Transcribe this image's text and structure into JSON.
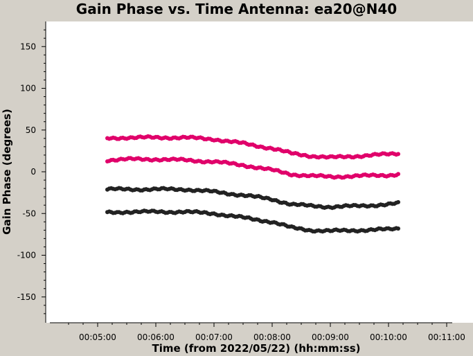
{
  "chart_data": {
    "type": "scatter",
    "title": "Gain Phase vs. Time Antenna: ea20@N40",
    "xlabel": "Time (from 2022/05/22) (hh:mm:ss)",
    "ylabel": "Gain Phase (degrees)",
    "xlim_seconds": [
      270,
      665
    ],
    "ylim": [
      -180,
      180
    ],
    "x_ticks": [
      "00:05:00",
      "00:06:00",
      "00:07:00",
      "00:08:00",
      "00:09:00",
      "00:10:00",
      "00:11:00"
    ],
    "y_ticks": [
      150,
      100,
      50,
      0,
      -50,
      -100,
      -150
    ],
    "grid": false,
    "x_time_points": [
      "00:05:10",
      "00:05:30",
      "00:06:00",
      "00:06:30",
      "00:07:00",
      "00:07:30",
      "00:08:00",
      "00:08:20",
      "00:08:40",
      "00:09:00",
      "00:09:30",
      "00:10:00",
      "00:10:10"
    ],
    "series": [
      {
        "color": "#e0006a",
        "values": [
          40,
          41,
          41,
          41,
          39,
          34,
          28,
          22,
          19,
          17,
          19,
          21,
          22
        ]
      },
      {
        "color": "#e0006a",
        "values": [
          14,
          15,
          15,
          14,
          12,
          8,
          2,
          -3,
          -5,
          -6,
          -5,
          -4,
          -3
        ]
      },
      {
        "color": "#222222",
        "values": [
          -21,
          -21,
          -21,
          -21,
          -24,
          -28,
          -33,
          -39,
          -41,
          -42,
          -41,
          -39,
          -38
        ]
      },
      {
        "color": "#222222",
        "values": [
          -49,
          -48,
          -48,
          -48,
          -50,
          -55,
          -60,
          -67,
          -70,
          -71,
          -70,
          -69,
          -68
        ]
      }
    ]
  }
}
